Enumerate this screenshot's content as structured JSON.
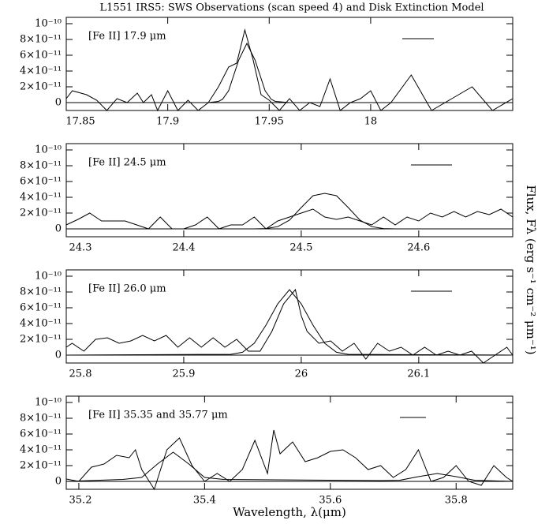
{
  "title": "L1551 IRS5: SWS Observations (scan speed 4) and Disk Extinction Model",
  "y_label": "Flux, Fλ (erg s⁻¹ cm⁻² μm⁻¹)",
  "x_label": "Wavelength, λ(μm)",
  "chart_data": [
    {
      "type": "line",
      "label": "[Fe II] 17.9 μm",
      "xlim": [
        17.85,
        18.07
      ],
      "xticks": [
        17.85,
        17.9,
        17.95,
        18
      ],
      "ylim": [
        -1e-11,
        1.08e-10
      ],
      "yticks": [
        0,
        {
          "value": 2e-11,
          "label": "2×10⁻¹¹"
        },
        {
          "value": 4e-11,
          "label": "4×10⁻¹¹"
        },
        {
          "value": 6e-11,
          "label": "6×10⁻¹¹"
        },
        {
          "value": 8e-11,
          "label": "8×10⁻¹¹"
        },
        {
          "value": 1e-10,
          "label": "10⁻¹⁰"
        }
      ],
      "series": [
        {
          "color": "#000000",
          "x": [
            17.85,
            17.853,
            17.86,
            17.865,
            17.87,
            17.875,
            17.88,
            17.885,
            17.888,
            17.892,
            17.895,
            17.9,
            17.905,
            17.91,
            17.915,
            17.92,
            17.925,
            17.93,
            17.934,
            17.938,
            17.942,
            17.946,
            17.95,
            17.955,
            17.96,
            17.965,
            17.97,
            17.975,
            17.98,
            17.985,
            17.99,
            17.995,
            18.0,
            18.005,
            18.01,
            18.02,
            18.03,
            18.04,
            18.05,
            18.06,
            18.07
          ],
          "values": [
            5e-12,
            1.5e-11,
            1e-11,
            3e-12,
            -1e-11,
            5e-12,
            0,
            1.2e-11,
            0,
            1e-11,
            -1e-11,
            1.5e-11,
            -1e-11,
            3e-12,
            -1e-11,
            0,
            2e-11,
            4.5e-11,
            5e-11,
            9.2e-11,
            5.5e-11,
            1e-11,
            3e-12,
            -1e-11,
            5e-12,
            -1e-11,
            0,
            -5e-12,
            3e-11,
            -1e-11,
            0,
            5e-12,
            1.5e-11,
            -1e-11,
            0,
            3.5e-11,
            -1e-11,
            5e-12,
            2e-11,
            -1e-11,
            5e-12
          ]
        },
        {
          "color": "#000000",
          "x": [
            17.85,
            17.92,
            17.925,
            17.927,
            17.93,
            17.935,
            17.939,
            17.943,
            17.948,
            17.951,
            17.953,
            17.96,
            18.07
          ],
          "values": [
            0,
            0,
            1.5e-12,
            4.2e-12,
            1.5e-11,
            5.4e-11,
            7.5e-11,
            5.4e-11,
            1.5e-11,
            4.2e-12,
            1.5e-12,
            0,
            0
          ]
        }
      ]
    },
    {
      "type": "line",
      "label": "[Fe II] 24.5 μm",
      "xlim": [
        24.3,
        24.68
      ],
      "xticks": [
        24.3,
        24.4,
        24.5,
        24.6
      ],
      "ylim": [
        -1e-11,
        1.08e-10
      ],
      "yticks": [
        0,
        {
          "value": 2e-11,
          "label": "2×10⁻¹¹"
        },
        {
          "value": 4e-11,
          "label": "4×10⁻¹¹"
        },
        {
          "value": 6e-11,
          "label": "6×10⁻¹¹"
        },
        {
          "value": 8e-11,
          "label": "8×10⁻¹¹"
        },
        {
          "value": 1e-10,
          "label": "10⁻¹⁰"
        }
      ],
      "series": [
        {
          "color": "#000000",
          "x": [
            24.3,
            24.31,
            24.32,
            24.33,
            24.34,
            24.35,
            24.36,
            24.37,
            24.38,
            24.39,
            24.4,
            24.41,
            24.42,
            24.43,
            24.44,
            24.45,
            24.46,
            24.47,
            24.48,
            24.49,
            24.5,
            24.51,
            24.52,
            24.53,
            24.54,
            24.55,
            24.56,
            24.57,
            24.58,
            24.59,
            24.6,
            24.61,
            24.62,
            24.63,
            24.64,
            24.65,
            24.66,
            24.67,
            24.68
          ],
          "values": [
            5e-12,
            1.2e-11,
            2e-11,
            1e-11,
            1e-11,
            1e-11,
            5e-12,
            0,
            1.5e-11,
            0,
            0,
            5e-12,
            1.5e-11,
            0,
            5e-12,
            5e-12,
            1.5e-11,
            0,
            1e-11,
            1.5e-11,
            2e-11,
            2.5e-11,
            1.5e-11,
            1.2e-11,
            1.5e-11,
            1e-11,
            5e-12,
            1.5e-11,
            5e-12,
            1.5e-11,
            1e-11,
            2e-11,
            1.5e-11,
            2.2e-11,
            1.5e-11,
            2.2e-11,
            1.8e-11,
            2.5e-11,
            1.5e-11
          ]
        },
        {
          "color": "#000000",
          "x": [
            24.3,
            24.46,
            24.47,
            24.48,
            24.49,
            24.5,
            24.51,
            24.52,
            24.53,
            24.54,
            24.55,
            24.56,
            24.57,
            24.58,
            24.68
          ],
          "values": [
            0,
            0,
            4e-13,
            2.8e-12,
            1.1e-11,
            2.7e-11,
            4.2e-11,
            4.5e-11,
            4.2e-11,
            2.7e-11,
            1.1e-11,
            2.8e-12,
            4e-13,
            0,
            0
          ]
        }
      ]
    },
    {
      "type": "line",
      "label": "[Fe II] 26.0 μm",
      "xlim": [
        25.8,
        26.18
      ],
      "xticks": [
        25.8,
        25.9,
        26,
        26.1
      ],
      "ylim": [
        -1e-11,
        1.08e-10
      ],
      "yticks": [
        0,
        {
          "value": 2e-11,
          "label": "2×10⁻¹¹"
        },
        {
          "value": 4e-11,
          "label": "4×10⁻¹¹"
        },
        {
          "value": 6e-11,
          "label": "6×10⁻¹¹"
        },
        {
          "value": 8e-11,
          "label": "8×10⁻¹¹"
        },
        {
          "value": 1e-10,
          "label": "10⁻¹⁰"
        }
      ],
      "series": [
        {
          "color": "#000000",
          "x": [
            25.8,
            25.805,
            25.815,
            25.825,
            25.835,
            25.845,
            25.855,
            25.865,
            25.875,
            25.885,
            25.895,
            25.905,
            25.915,
            25.925,
            25.935,
            25.945,
            25.955,
            25.965,
            25.975,
            25.985,
            25.995,
            26.0,
            26.005,
            26.015,
            26.025,
            26.035,
            26.045,
            26.055,
            26.065,
            26.075,
            26.085,
            26.095,
            26.105,
            26.115,
            26.125,
            26.135,
            26.145,
            26.155,
            26.165,
            26.175,
            26.18
          ],
          "values": [
            1e-11,
            1.5e-11,
            5e-12,
            2e-11,
            2.2e-11,
            1.5e-11,
            1.8e-11,
            2.5e-11,
            1.8e-11,
            2.5e-11,
            1e-11,
            2.2e-11,
            1e-11,
            2.2e-11,
            1e-11,
            2e-11,
            5e-12,
            5e-12,
            3e-11,
            6.5e-11,
            8.3e-11,
            5e-11,
            3e-11,
            1.5e-11,
            1.8e-11,
            5e-12,
            1.5e-11,
            -5e-12,
            1.5e-11,
            5e-12,
            1e-11,
            0,
            1e-11,
            0,
            5e-12,
            0,
            5e-12,
            -1e-11,
            0,
            1e-11,
            0
          ]
        },
        {
          "color": "#000000",
          "x": [
            25.8,
            25.94,
            25.95,
            25.96,
            25.97,
            25.98,
            25.99,
            26.0,
            26.01,
            26.02,
            26.03,
            26.04,
            26.18
          ],
          "values": [
            0,
            1e-12,
            3.6e-12,
            1.5e-11,
            3.8e-11,
            6.5e-11,
            8.3e-11,
            6.5e-11,
            3.8e-11,
            1.5e-11,
            3.6e-12,
            1e-12,
            0
          ]
        }
      ]
    },
    {
      "type": "line",
      "label": "[Fe II] 35.35 and 35.77 μm",
      "xlim": [
        35.18,
        35.89
      ],
      "xticks": [
        35.2,
        35.4,
        35.6,
        35.8
      ],
      "ylim": [
        -1e-11,
        1.08e-10
      ],
      "yticks": [
        0,
        {
          "value": 2e-11,
          "label": "2×10⁻¹¹"
        },
        {
          "value": 4e-11,
          "label": "4×10⁻¹¹"
        },
        {
          "value": 6e-11,
          "label": "6×10⁻¹¹"
        },
        {
          "value": 8e-11,
          "label": "8×10⁻¹¹"
        },
        {
          "value": 1e-10,
          "label": "10⁻¹⁰"
        }
      ],
      "series": [
        {
          "color": "#000000",
          "x": [
            35.18,
            35.2,
            35.22,
            35.24,
            35.26,
            35.28,
            35.29,
            35.3,
            35.32,
            35.34,
            35.36,
            35.38,
            35.4,
            35.42,
            35.44,
            35.46,
            35.48,
            35.5,
            35.51,
            35.52,
            35.54,
            35.56,
            35.58,
            35.6,
            35.62,
            35.64,
            35.66,
            35.68,
            35.7,
            35.72,
            35.74,
            35.76,
            35.78,
            35.8,
            35.82,
            35.84,
            35.86,
            35.88,
            35.89
          ],
          "values": [
            3e-12,
            0,
            1.8e-11,
            2.2e-11,
            3.3e-11,
            3e-11,
            4e-11,
            1.5e-11,
            -1e-11,
            4e-11,
            5.5e-11,
            2e-11,
            0,
            1e-11,
            0,
            1.5e-11,
            5.2e-11,
            1e-11,
            6.5e-11,
            3.5e-11,
            5e-11,
            2.5e-11,
            3e-11,
            3.8e-11,
            4e-11,
            3e-11,
            1.5e-11,
            2e-11,
            5e-12,
            1.5e-11,
            4e-11,
            0,
            5e-12,
            2e-11,
            0,
            -5e-12,
            2e-11,
            5e-12,
            0
          ]
        },
        {
          "color": "#000000",
          "x": [
            35.18,
            35.27,
            35.3,
            35.325,
            35.35,
            35.375,
            35.4,
            35.43,
            35.68,
            35.71,
            35.74,
            35.77,
            35.8,
            35.83,
            35.89
          ],
          "values": [
            0,
            2.5e-12,
            5e-12,
            2.2e-11,
            3.7e-11,
            2.2e-11,
            5e-12,
            2.5e-12,
            1e-12,
            1.4e-12,
            6e-12,
            1e-11,
            6e-12,
            1.4e-12,
            0
          ]
        }
      ]
    }
  ]
}
